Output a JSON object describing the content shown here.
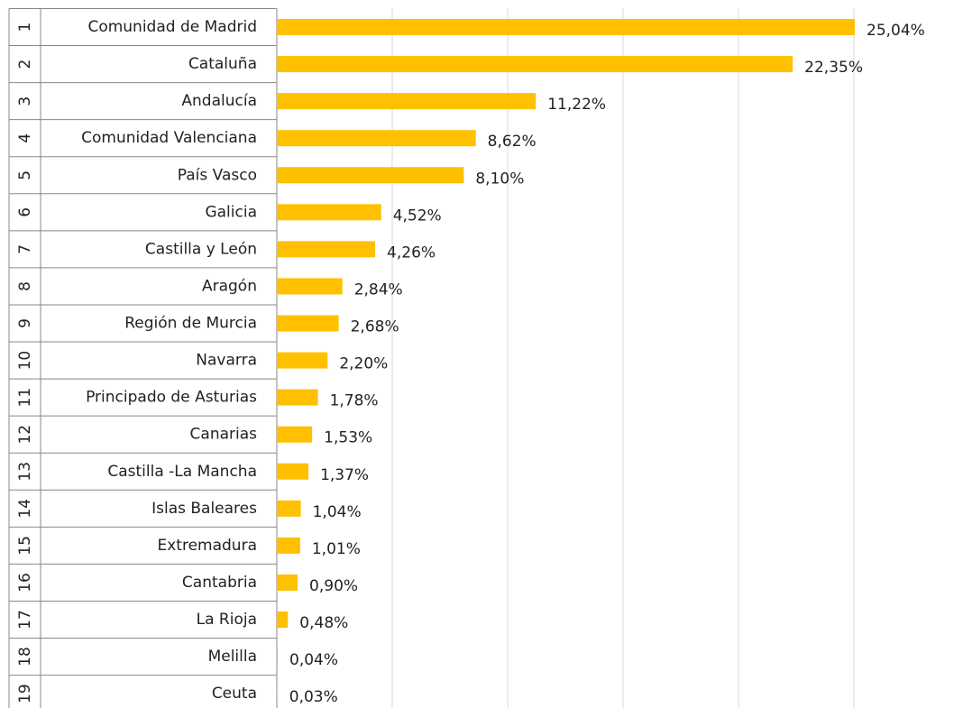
{
  "chart_data": {
    "type": "barh",
    "ranks": [
      1,
      2,
      3,
      4,
      5,
      6,
      7,
      8,
      9,
      10,
      11,
      12,
      13,
      14,
      15,
      16,
      17,
      18,
      19
    ],
    "categories": [
      "Comunidad de Madrid",
      "Cataluña",
      "Andalucía",
      "Comunidad Valenciana",
      "País Vasco",
      "Galicia",
      "Castilla y León",
      "Aragón",
      "Región de Murcia",
      "Navarra",
      "Principado de Asturias",
      "Canarias",
      "Castilla -La Mancha",
      "Islas Baleares",
      "Extremadura",
      "Cantabria",
      "La Rioja",
      "Melilla",
      "Ceuta"
    ],
    "values": [
      25.04,
      22.35,
      11.22,
      8.62,
      8.1,
      4.52,
      4.26,
      2.84,
      2.68,
      2.2,
      1.78,
      1.53,
      1.37,
      1.04,
      1.01,
      0.9,
      0.48,
      0.04,
      0.03
    ],
    "value_labels": [
      "25,04%",
      "22,35%",
      "11,22%",
      "8,62%",
      "8,10%",
      "4,52%",
      "4,26%",
      "2,84%",
      "2,68%",
      "2,20%",
      "1,78%",
      "1,53%",
      "1,37%",
      "1,04%",
      "1,01%",
      "0,90%",
      "0,48%",
      "0,04%",
      "0,03%"
    ],
    "color": "#ffc000",
    "xlim": [
      0,
      25
    ],
    "xticks": [
      0,
      5,
      10,
      15,
      20,
      25
    ],
    "grid": true
  }
}
